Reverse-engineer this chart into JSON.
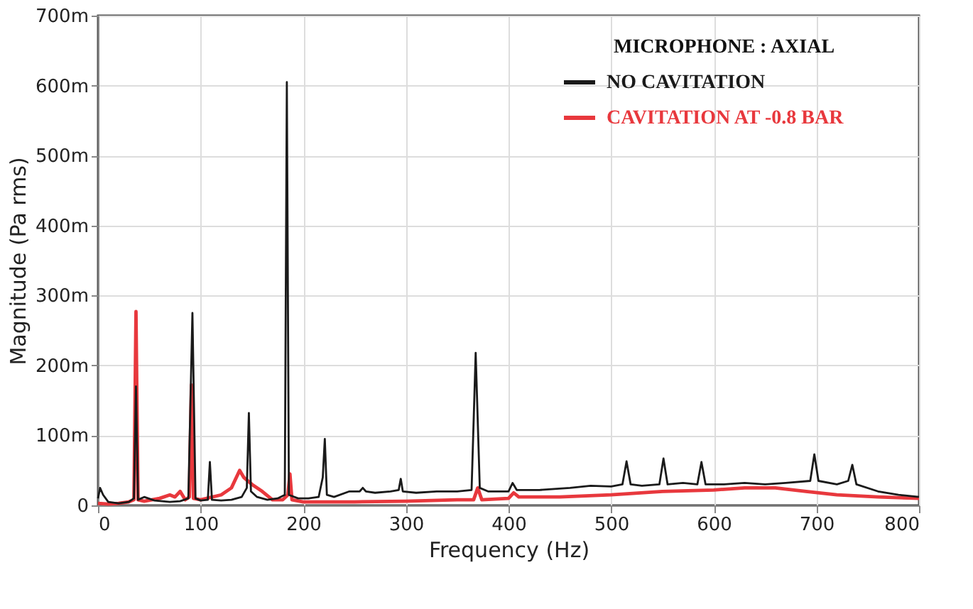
{
  "chart_data": {
    "type": "line",
    "xlabel": "Frequency (Hz)",
    "ylabel": "Magnitude (Pa rms)",
    "legend_title": "MICROPHONE : AXIAL",
    "xlim": [
      0,
      800
    ],
    "xticks": [
      0,
      100,
      200,
      300,
      400,
      500,
      600,
      700,
      800
    ],
    "ylim": [
      0,
      700
    ],
    "yticks": [
      0,
      {
        "value": 100,
        "label": "100m"
      },
      {
        "value": 200,
        "label": "200m"
      },
      {
        "value": 300,
        "label": "300m"
      },
      {
        "value": 400,
        "label": "400m"
      },
      {
        "value": 500,
        "label": "500m"
      },
      {
        "value": 600,
        "label": "600m"
      },
      {
        "value": 700,
        "label": "700m"
      }
    ],
    "grid": true,
    "legend": "top right",
    "marker": "none",
    "line_style": "solid",
    "series": [
      {
        "name": "NO CAVITATION",
        "color": "#1a1a1a",
        "x": [
          0,
          2,
          5,
          10,
          20,
          30,
          35,
          37,
          39,
          45,
          55,
          70,
          80,
          88,
          92,
          95,
          100,
          107,
          109,
          111,
          120,
          130,
          140,
          145,
          147,
          149,
          155,
          165,
          175,
          182,
          184,
          186,
          195,
          205,
          215,
          219,
          221,
          223,
          230,
          245,
          255,
          258,
          261,
          270,
          285,
          293,
          295,
          297,
          310,
          330,
          350,
          364,
          368,
          372,
          380,
          400,
          404,
          408,
          430,
          460,
          480,
          500,
          511,
          515,
          519,
          530,
          547,
          551,
          555,
          570,
          584,
          588,
          592,
          610,
          630,
          650,
          670,
          694,
          698,
          702,
          720,
          731,
          735,
          739,
          760,
          780,
          800
        ],
        "values": [
          10,
          25,
          15,
          5,
          3,
          5,
          10,
          170,
          8,
          12,
          7,
          5,
          6,
          10,
          275,
          10,
          7,
          8,
          62,
          8,
          7,
          8,
          12,
          25,
          132,
          20,
          12,
          8,
          10,
          15,
          605,
          15,
          10,
          10,
          12,
          40,
          95,
          15,
          12,
          20,
          20,
          25,
          20,
          18,
          20,
          22,
          38,
          20,
          18,
          20,
          20,
          22,
          218,
          25,
          20,
          20,
          32,
          22,
          22,
          25,
          28,
          27,
          30,
          63,
          30,
          28,
          30,
          67,
          30,
          32,
          30,
          62,
          30,
          30,
          32,
          30,
          32,
          35,
          73,
          35,
          30,
          35,
          58,
          30,
          20,
          15,
          12
        ]
      },
      {
        "name": "CAVITATION AT -0.8 BAR",
        "color": "#e8383d",
        "x": [
          0,
          10,
          20,
          30,
          35,
          37,
          39,
          45,
          60,
          70,
          75,
          80,
          85,
          89,
          91,
          93,
          100,
          120,
          130,
          138,
          142,
          150,
          160,
          170,
          180,
          185,
          187,
          189,
          200,
          250,
          300,
          350,
          366,
          370,
          374,
          400,
          405,
          410,
          450,
          500,
          550,
          600,
          630,
          660,
          690,
          720,
          760,
          800
        ],
        "values": [
          3,
          2,
          3,
          5,
          8,
          277,
          8,
          6,
          10,
          15,
          12,
          20,
          8,
          12,
          172,
          10,
          8,
          15,
          25,
          50,
          40,
          30,
          20,
          8,
          8,
          15,
          45,
          8,
          5,
          5,
          6,
          8,
          8,
          25,
          8,
          10,
          18,
          12,
          12,
          15,
          20,
          22,
          25,
          25,
          20,
          15,
          12,
          10
        ]
      }
    ]
  }
}
